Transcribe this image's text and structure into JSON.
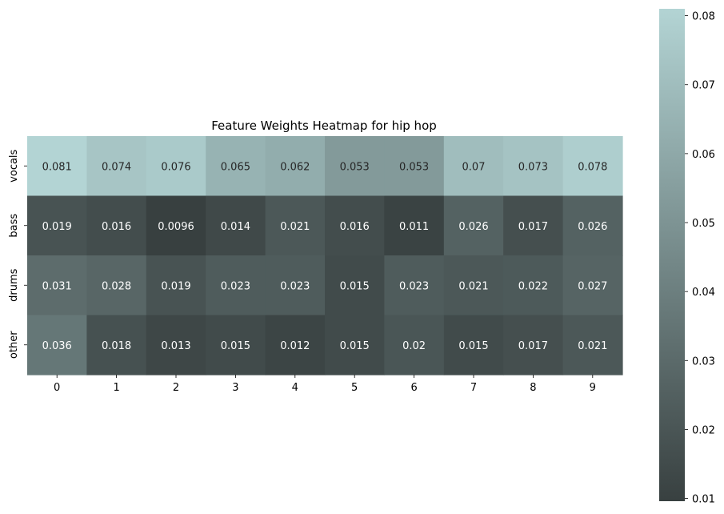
{
  "chart_data": {
    "type": "heatmap",
    "title": "Feature Weights Heatmap for hip hop",
    "xlabel": "",
    "ylabel": "",
    "x_categories": [
      "0",
      "1",
      "2",
      "3",
      "4",
      "5",
      "6",
      "7",
      "8",
      "9"
    ],
    "y_categories": [
      "vocals",
      "bass",
      "drums",
      "other"
    ],
    "values": [
      [
        0.081,
        0.074,
        0.076,
        0.065,
        0.062,
        0.053,
        0.053,
        0.07,
        0.073,
        0.078
      ],
      [
        0.019,
        0.016,
        0.0096,
        0.014,
        0.021,
        0.016,
        0.011,
        0.026,
        0.017,
        0.026
      ],
      [
        0.031,
        0.028,
        0.019,
        0.023,
        0.023,
        0.015,
        0.023,
        0.021,
        0.022,
        0.027
      ],
      [
        0.036,
        0.018,
        0.013,
        0.015,
        0.012,
        0.015,
        0.02,
        0.015,
        0.017,
        0.021
      ]
    ],
    "value_labels": [
      [
        "0.081",
        "0.074",
        "0.076",
        "0.065",
        "0.062",
        "0.053",
        "0.053",
        "0.07",
        "0.073",
        "0.078"
      ],
      [
        "0.019",
        "0.016",
        "0.0096",
        "0.014",
        "0.021",
        "0.016",
        "0.011",
        "0.026",
        "0.017",
        "0.026"
      ],
      [
        "0.031",
        "0.028",
        "0.019",
        "0.023",
        "0.023",
        "0.015",
        "0.023",
        "0.021",
        "0.022",
        "0.027"
      ],
      [
        "0.036",
        "0.018",
        "0.013",
        "0.015",
        "0.012",
        "0.015",
        "0.02",
        "0.015",
        "0.017",
        "0.021"
      ]
    ],
    "colorbar": {
      "range": [
        0.0096,
        0.081
      ],
      "ticks": [
        0.01,
        0.02,
        0.03,
        0.04,
        0.05,
        0.06,
        0.07,
        0.08
      ],
      "tick_labels": [
        "0.01",
        "0.02",
        "0.03",
        "0.04",
        "0.05",
        "0.06",
        "0.07",
        "0.08"
      ],
      "color_low": "#384040",
      "color_high": "#b3d4d4",
      "placement": "right"
    },
    "annotation_color_dark_cells": "#ffffff",
    "annotation_color_light_cells": "#262626",
    "grid": false
  }
}
